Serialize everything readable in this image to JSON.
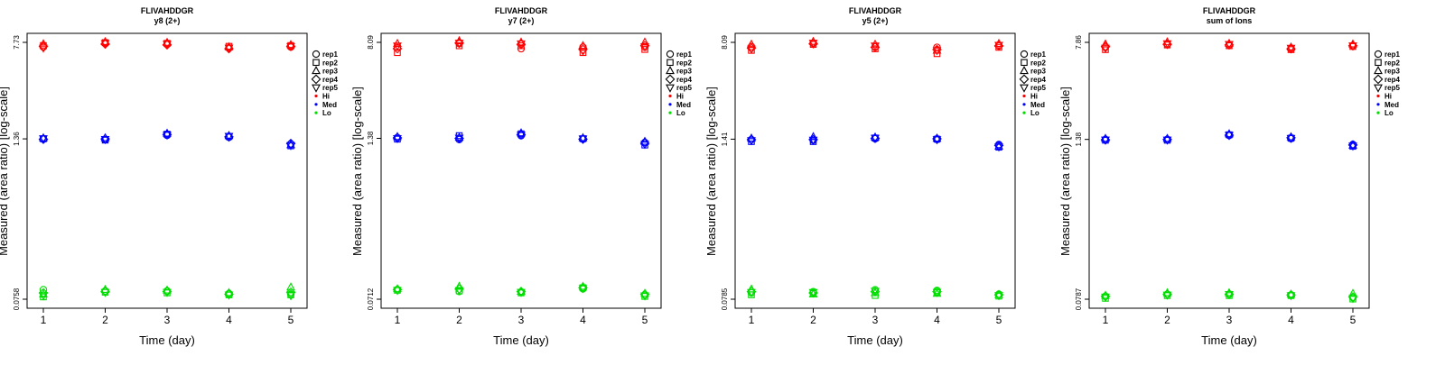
{
  "chart_data": [
    {
      "type": "scatter",
      "title": "FLIVAHDDGR",
      "subtitle": "y8 (2+)",
      "xlabel": "Time (day)",
      "ylabel": "Measured (area ratio) [log-scale]",
      "log_y": true,
      "x": [
        1,
        2,
        3,
        4,
        5
      ],
      "ylim": [
        0.0758,
        7.73
      ],
      "yticks": [
        {
          "value": 0.0758,
          "label": "0.0758"
        },
        {
          "value": 1.36,
          "label": "1.36"
        },
        {
          "value": 7.73,
          "label": "7.73"
        }
      ],
      "series": [
        {
          "group": "Hi",
          "rep": "rep1",
          "values": [
            7.1,
            7.6,
            7.5,
            7.0,
            7.1
          ]
        },
        {
          "group": "Hi",
          "rep": "rep2",
          "values": [
            7.3,
            7.7,
            7.6,
            7.2,
            7.3
          ]
        },
        {
          "group": "Hi",
          "rep": "rep3",
          "values": [
            7.5,
            7.8,
            7.7,
            7.1,
            7.4
          ]
        },
        {
          "group": "Hi",
          "rep": "rep4",
          "values": [
            7.2,
            7.5,
            7.4,
            6.9,
            7.2
          ]
        },
        {
          "group": "Hi",
          "rep": "rep5",
          "values": [
            7.0,
            7.6,
            7.5,
            7.0,
            7.2
          ]
        },
        {
          "group": "Med",
          "rep": "rep1",
          "values": [
            1.36,
            1.34,
            1.45,
            1.4,
            1.24
          ]
        },
        {
          "group": "Med",
          "rep": "rep2",
          "values": [
            1.36,
            1.33,
            1.48,
            1.42,
            1.2
          ]
        },
        {
          "group": "Med",
          "rep": "rep3",
          "values": [
            1.38,
            1.38,
            1.5,
            1.44,
            1.22
          ]
        },
        {
          "group": "Med",
          "rep": "rep4",
          "values": [
            1.35,
            1.36,
            1.47,
            1.41,
            1.25
          ]
        },
        {
          "group": "Med",
          "rep": "rep5",
          "values": [
            1.37,
            1.35,
            1.46,
            1.43,
            1.21
          ]
        },
        {
          "group": "Lo",
          "rep": "rep1",
          "values": [
            0.09,
            0.088,
            0.088,
            0.084,
            0.083
          ]
        },
        {
          "group": "Lo",
          "rep": "rep2",
          "values": [
            0.079,
            0.086,
            0.085,
            0.082,
            0.082
          ]
        },
        {
          "group": "Lo",
          "rep": "rep3",
          "values": [
            0.083,
            0.09,
            0.089,
            0.085,
            0.094
          ]
        },
        {
          "group": "Lo",
          "rep": "rep4",
          "values": [
            0.085,
            0.087,
            0.087,
            0.083,
            0.086
          ]
        },
        {
          "group": "Lo",
          "rep": "rep5",
          "values": [
            0.081,
            0.086,
            0.086,
            0.082,
            0.081
          ]
        }
      ]
    },
    {
      "type": "scatter",
      "title": "FLIVAHDDGR",
      "subtitle": "y7 (2+)",
      "xlabel": "Time (day)",
      "ylabel": "Measured (area ratio) [log-scale]",
      "log_y": true,
      "x": [
        1,
        2,
        3,
        4,
        5
      ],
      "ylim": [
        0.0712,
        8.09
      ],
      "yticks": [
        {
          "value": 0.0712,
          "label": "0.0712"
        },
        {
          "value": 1.38,
          "label": "1.38"
        },
        {
          "value": 8.09,
          "label": "8.09"
        }
      ],
      "series": [
        {
          "group": "Hi",
          "rep": "rep1",
          "values": [
            7.4,
            7.9,
            7.2,
            7.4,
            7.4
          ]
        },
        {
          "group": "Hi",
          "rep": "rep2",
          "values": [
            6.7,
            7.6,
            7.6,
            6.7,
            7.1
          ]
        },
        {
          "group": "Hi",
          "rep": "rep3",
          "values": [
            7.9,
            8.3,
            8.1,
            7.6,
            8.1
          ]
        },
        {
          "group": "Hi",
          "rep": "rep4",
          "values": [
            7.2,
            8.0,
            7.8,
            7.1,
            7.6
          ]
        },
        {
          "group": "Hi",
          "rep": "rep5",
          "values": [
            7.6,
            8.0,
            7.9,
            6.9,
            7.5
          ]
        },
        {
          "group": "Med",
          "rep": "rep1",
          "values": [
            1.4,
            1.35,
            1.45,
            1.36,
            1.28
          ]
        },
        {
          "group": "Med",
          "rep": "rep2",
          "values": [
            1.36,
            1.45,
            1.5,
            1.37,
            1.22
          ]
        },
        {
          "group": "Med",
          "rep": "rep3",
          "values": [
            1.42,
            1.4,
            1.52,
            1.39,
            1.3
          ]
        },
        {
          "group": "Med",
          "rep": "rep4",
          "values": [
            1.39,
            1.38,
            1.48,
            1.36,
            1.26
          ]
        },
        {
          "group": "Med",
          "rep": "rep5",
          "values": [
            1.38,
            1.39,
            1.47,
            1.37,
            1.24
          ]
        },
        {
          "group": "Lo",
          "rep": "rep1",
          "values": [
            0.085,
            0.082,
            0.081,
            0.086,
            0.077
          ]
        },
        {
          "group": "Lo",
          "rep": "rep2",
          "values": [
            0.084,
            0.083,
            0.08,
            0.088,
            0.075
          ]
        },
        {
          "group": "Lo",
          "rep": "rep3",
          "values": [
            0.086,
            0.09,
            0.082,
            0.09,
            0.079
          ]
        },
        {
          "group": "Lo",
          "rep": "rep4",
          "values": [
            0.085,
            0.086,
            0.082,
            0.088,
            0.078
          ]
        },
        {
          "group": "Lo",
          "rep": "rep5",
          "values": [
            0.084,
            0.084,
            0.081,
            0.087,
            0.076
          ]
        }
      ]
    },
    {
      "type": "scatter",
      "title": "FLIVAHDDGR",
      "subtitle": "y5 (2+)",
      "xlabel": "Time (day)",
      "ylabel": "Measured (area ratio) [log-scale]",
      "log_y": true,
      "x": [
        1,
        2,
        3,
        4,
        5
      ],
      "ylim": [
        0.0785,
        8.09
      ],
      "yticks": [
        {
          "value": 0.0785,
          "label": "0.0785"
        },
        {
          "value": 1.41,
          "label": "1.41"
        },
        {
          "value": 8.09,
          "label": "8.09"
        }
      ],
      "series": [
        {
          "group": "Hi",
          "rep": "rep1",
          "values": [
            7.5,
            8.0,
            7.5,
            7.4,
            7.6
          ]
        },
        {
          "group": "Hi",
          "rep": "rep2",
          "values": [
            7.0,
            7.8,
            7.2,
            6.6,
            7.4
          ]
        },
        {
          "group": "Hi",
          "rep": "rep3",
          "values": [
            7.8,
            8.2,
            7.8,
            7.0,
            7.9
          ]
        },
        {
          "group": "Hi",
          "rep": "rep4",
          "values": [
            7.3,
            7.9,
            7.4,
            7.1,
            7.6
          ]
        },
        {
          "group": "Hi",
          "rep": "rep5",
          "values": [
            7.2,
            8.0,
            7.6,
            7.0,
            7.7
          ]
        },
        {
          "group": "Med",
          "rep": "rep1",
          "values": [
            1.4,
            1.38,
            1.42,
            1.4,
            1.28
          ]
        },
        {
          "group": "Med",
          "rep": "rep2",
          "values": [
            1.35,
            1.35,
            1.44,
            1.41,
            1.22
          ]
        },
        {
          "group": "Med",
          "rep": "rep3",
          "values": [
            1.43,
            1.47,
            1.46,
            1.43,
            1.24
          ]
        },
        {
          "group": "Med",
          "rep": "rep4",
          "values": [
            1.4,
            1.4,
            1.43,
            1.42,
            1.26
          ]
        },
        {
          "group": "Med",
          "rep": "rep5",
          "values": [
            1.38,
            1.39,
            1.44,
            1.4,
            1.23
          ]
        },
        {
          "group": "Lo",
          "rep": "rep1",
          "values": [
            0.088,
            0.09,
            0.093,
            0.092,
            0.086
          ]
        },
        {
          "group": "Lo",
          "rep": "rep2",
          "values": [
            0.085,
            0.087,
            0.084,
            0.089,
            0.083
          ]
        },
        {
          "group": "Lo",
          "rep": "rep3",
          "values": [
            0.094,
            0.086,
            0.088,
            0.087,
            0.085
          ]
        },
        {
          "group": "Lo",
          "rep": "rep4",
          "values": [
            0.09,
            0.088,
            0.09,
            0.09,
            0.085
          ]
        },
        {
          "group": "Lo",
          "rep": "rep5",
          "values": [
            0.089,
            0.089,
            0.091,
            0.089,
            0.084
          ]
        }
      ]
    },
    {
      "type": "scatter",
      "title": "FLIVAHDDGR",
      "subtitle": "sum of Ions",
      "xlabel": "Time (day)",
      "ylabel": "Measured (area ratio) [log-scale]",
      "log_y": true,
      "x": [
        1,
        2,
        3,
        4,
        5
      ],
      "ylim": [
        0.0787,
        7.86
      ],
      "yticks": [
        {
          "value": 0.0787,
          "label": "0.0787"
        },
        {
          "value": 1.38,
          "label": "1.38"
        },
        {
          "value": 7.86,
          "label": "7.86"
        }
      ],
      "series": [
        {
          "group": "Hi",
          "rep": "rep1",
          "values": [
            7.2,
            7.6,
            7.5,
            7.0,
            7.4
          ]
        },
        {
          "group": "Hi",
          "rep": "rep2",
          "values": [
            6.9,
            7.5,
            7.4,
            6.9,
            7.3
          ]
        },
        {
          "group": "Hi",
          "rep": "rep3",
          "values": [
            7.6,
            7.9,
            7.7,
            7.2,
            7.6
          ]
        },
        {
          "group": "Hi",
          "rep": "rep4",
          "values": [
            7.3,
            7.6,
            7.5,
            7.0,
            7.4
          ]
        },
        {
          "group": "Hi",
          "rep": "rep5",
          "values": [
            7.1,
            7.7,
            7.6,
            7.1,
            7.4
          ]
        },
        {
          "group": "Med",
          "rep": "rep1",
          "values": [
            1.38,
            1.38,
            1.48,
            1.4,
            1.26
          ]
        },
        {
          "group": "Med",
          "rep": "rep2",
          "values": [
            1.36,
            1.36,
            1.5,
            1.41,
            1.22
          ]
        },
        {
          "group": "Med",
          "rep": "rep3",
          "values": [
            1.4,
            1.4,
            1.52,
            1.44,
            1.24
          ]
        },
        {
          "group": "Med",
          "rep": "rep4",
          "values": [
            1.37,
            1.38,
            1.49,
            1.42,
            1.25
          ]
        },
        {
          "group": "Med",
          "rep": "rep5",
          "values": [
            1.37,
            1.37,
            1.49,
            1.41,
            1.23
          ]
        },
        {
          "group": "Lo",
          "rep": "rep1",
          "values": [
            0.083,
            0.086,
            0.086,
            0.085,
            0.081
          ]
        },
        {
          "group": "Lo",
          "rep": "rep2",
          "values": [
            0.08,
            0.084,
            0.084,
            0.084,
            0.079
          ]
        },
        {
          "group": "Lo",
          "rep": "rep3",
          "values": [
            0.084,
            0.088,
            0.088,
            0.086,
            0.087
          ]
        },
        {
          "group": "Lo",
          "rep": "rep4",
          "values": [
            0.083,
            0.086,
            0.086,
            0.085,
            0.082
          ]
        },
        {
          "group": "Lo",
          "rep": "rep5",
          "values": [
            0.082,
            0.085,
            0.086,
            0.084,
            0.08
          ]
        }
      ]
    }
  ],
  "legend": {
    "reps": [
      {
        "label": "rep1",
        "shape": "circle"
      },
      {
        "label": "rep2",
        "shape": "square"
      },
      {
        "label": "rep3",
        "shape": "triangle-up"
      },
      {
        "label": "rep4",
        "shape": "diamond"
      },
      {
        "label": "rep5",
        "shape": "triangle-down"
      }
    ],
    "groups": [
      {
        "label": "Hi",
        "color": "#ff0000"
      },
      {
        "label": "Med",
        "color": "#0000ff"
      },
      {
        "label": "Lo",
        "color": "#00dd00"
      }
    ]
  }
}
